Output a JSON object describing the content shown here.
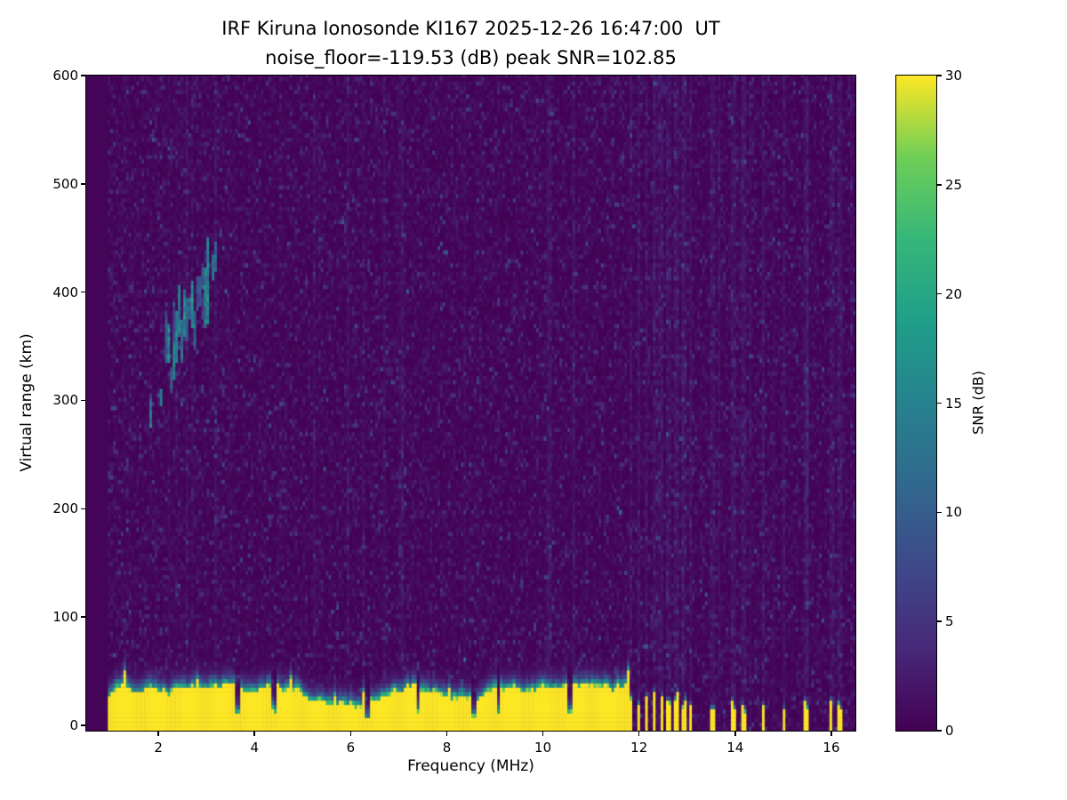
{
  "figure": {
    "title": "IRF Kiruna Ionosonde KI167 2025-12-26 16:47:00  UT",
    "subtitle": "noise_floor=-119.53 (dB) peak SNR=102.85"
  },
  "chart_data": {
    "type": "heatmap",
    "title": "IRF Kiruna Ionosonde KI167 2025-12-26 16:47:00  UT",
    "subtitle": "noise_floor=-119.53 (dB) peak SNR=102.85",
    "xlabel": "Frequency (MHz)",
    "ylabel": "Virtual range (km)",
    "xlim": [
      0.5,
      16.5
    ],
    "ylim": [
      -5,
      600
    ],
    "xticks": [
      2,
      4,
      6,
      8,
      10,
      12,
      14,
      16
    ],
    "yticks": [
      0,
      100,
      200,
      300,
      400,
      500,
      600
    ],
    "grid": false,
    "data_freq_range_mhz": [
      0.95,
      16.45
    ],
    "colorbar": {
      "label": "SNR (dB)",
      "min": 0,
      "max": 30,
      "ticks": [
        0,
        5,
        10,
        15,
        20,
        25,
        30
      ],
      "colormap": "viridis"
    },
    "colormap_stops": [
      [
        0.0,
        "#440154"
      ],
      [
        0.125,
        "#482878"
      ],
      [
        0.25,
        "#3e4989"
      ],
      [
        0.375,
        "#31688e"
      ],
      [
        0.5,
        "#26828e"
      ],
      [
        0.625,
        "#1f9e89"
      ],
      [
        0.75,
        "#35b779"
      ],
      [
        0.875,
        "#6ece58"
      ],
      [
        1.0,
        "#fde725"
      ]
    ],
    "noise_floor_db": -119.53,
    "peak_snr_db": 102.85,
    "features": {
      "background_mean_snr_db": 0.9,
      "ground_band": {
        "freq_start_mhz": 0.95,
        "freq_end_mhz": 11.78,
        "top_km_min": 20,
        "top_km_max": 42,
        "snr_db": 30,
        "notch_freqs_mhz": [
          3.62,
          4.38,
          6.32,
          7.38,
          8.52,
          9.05,
          10.55
        ]
      },
      "rfi_comb": {
        "freq_start_mhz": 11.78,
        "freq_end_mhz": 13.15,
        "period_mhz": 0.155,
        "duty": 0.5,
        "top_km": 30
      },
      "isolated_rfi_bars_mhz": [
        13.5,
        13.95,
        14.15,
        14.55,
        15.0,
        15.45,
        15.95,
        16.15
      ],
      "echo_trace": {
        "freq_start_mhz": 1.7,
        "freq_end_mhz": 3.3,
        "range_start_km": 300,
        "range_end_km": 430,
        "peak_snr_db": 17,
        "cluster_freqs_mhz": [
          2.3,
          2.9
        ]
      }
    }
  }
}
